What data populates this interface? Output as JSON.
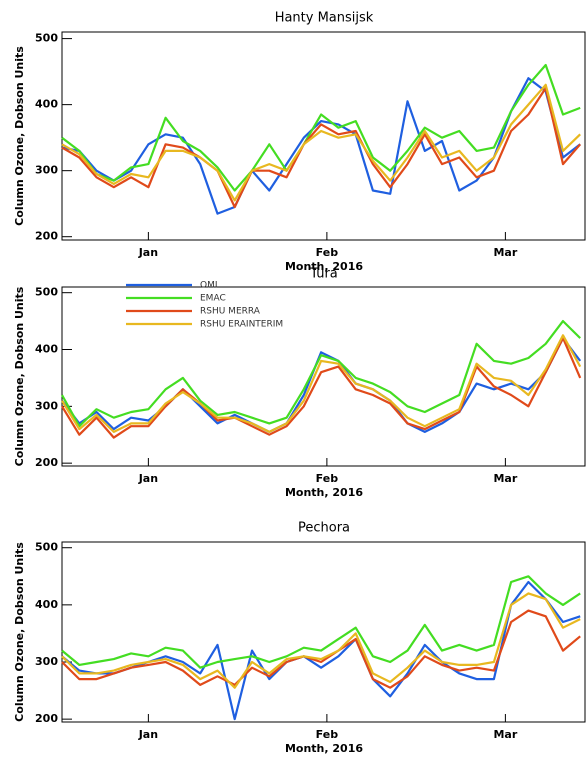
{
  "chart_data": [
    {
      "type": "line",
      "title": "Hanty Mansijsk",
      "x_label": "Month, 2016",
      "y_label": "Column Ozone, Dobson Units",
      "x": [
        0,
        3,
        6,
        9,
        12,
        15,
        18,
        21,
        24,
        27,
        30,
        33,
        36,
        39,
        42,
        45,
        48,
        51,
        54,
        57,
        60,
        63,
        66,
        69,
        72,
        75,
        78,
        81,
        84,
        87,
        90
      ],
      "xlim": [
        0,
        91
      ],
      "xticks": [
        {
          "value": 15,
          "label": "Jan"
        },
        {
          "value": 46,
          "label": "Feb"
        },
        {
          "value": 77,
          "label": "Mar"
        }
      ],
      "ylim": [
        195,
        510
      ],
      "yticks": [
        200,
        300,
        400,
        500
      ],
      "series": [
        {
          "name": "OMI",
          "color": "#1f5fe0",
          "values": [
            335,
            330,
            300,
            285,
            300,
            340,
            355,
            350,
            310,
            235,
            245,
            300,
            270,
            310,
            350,
            375,
            370,
            355,
            270,
            265,
            405,
            330,
            345,
            270,
            285,
            320,
            390,
            440,
            420,
            320,
            340
          ]
        },
        {
          "name": "EMAC",
          "color": "#44dd22",
          "values": [
            350,
            330,
            295,
            285,
            305,
            310,
            380,
            345,
            330,
            305,
            270,
            300,
            340,
            300,
            340,
            385,
            365,
            375,
            320,
            300,
            330,
            365,
            350,
            360,
            330,
            335,
            390,
            430,
            460,
            385,
            395
          ]
        },
        {
          "name": "RSHU MERRA",
          "color": "#e04a1a",
          "values": [
            335,
            320,
            290,
            275,
            290,
            275,
            340,
            335,
            320,
            300,
            245,
            300,
            300,
            290,
            340,
            370,
            355,
            360,
            310,
            275,
            310,
            355,
            310,
            320,
            290,
            300,
            360,
            385,
            425,
            310,
            340
          ]
        },
        {
          "name": "RSHU ERAINTERIM",
          "color": "#e8b820",
          "values": [
            340,
            325,
            295,
            280,
            295,
            290,
            330,
            330,
            320,
            300,
            255,
            300,
            310,
            300,
            340,
            360,
            350,
            355,
            315,
            285,
            320,
            360,
            320,
            330,
            300,
            320,
            370,
            400,
            430,
            330,
            355
          ]
        }
      ]
    },
    {
      "type": "line",
      "title": "Tura",
      "x_label": "Month, 2016",
      "y_label": "Column Ozone, Dobson Units",
      "legend": true,
      "x": [
        0,
        3,
        6,
        9,
        12,
        15,
        18,
        21,
        24,
        27,
        30,
        33,
        36,
        39,
        42,
        45,
        48,
        51,
        54,
        57,
        60,
        63,
        66,
        69,
        72,
        75,
        78,
        81,
        84,
        87,
        90
      ],
      "xlim": [
        0,
        91
      ],
      "xticks": [
        {
          "value": 15,
          "label": "Jan"
        },
        {
          "value": 46,
          "label": "Feb"
        },
        {
          "value": 77,
          "label": "Mar"
        }
      ],
      "ylim": [
        195,
        510
      ],
      "yticks": [
        200,
        300,
        400,
        500
      ],
      "series": [
        {
          "name": "OMI",
          "color": "#1f5fe0",
          "values": [
            310,
            270,
            290,
            260,
            280,
            275,
            300,
            330,
            300,
            270,
            285,
            270,
            255,
            270,
            320,
            395,
            380,
            340,
            330,
            310,
            270,
            255,
            270,
            290,
            340,
            330,
            340,
            330,
            360,
            420,
            380
          ]
        },
        {
          "name": "EMAC",
          "color": "#44dd22",
          "values": [
            320,
            265,
            295,
            280,
            290,
            295,
            330,
            350,
            310,
            285,
            290,
            280,
            270,
            280,
            330,
            390,
            380,
            350,
            340,
            325,
            300,
            290,
            305,
            320,
            410,
            380,
            375,
            385,
            410,
            450,
            420
          ]
        },
        {
          "name": "RSHU MERRA",
          "color": "#e04a1a",
          "values": [
            300,
            250,
            280,
            245,
            265,
            265,
            300,
            330,
            305,
            275,
            280,
            265,
            250,
            265,
            300,
            360,
            370,
            330,
            320,
            305,
            270,
            260,
            275,
            290,
            370,
            335,
            320,
            300,
            360,
            420,
            350
          ]
        },
        {
          "name": "RSHU ERAINTERIM",
          "color": "#e8b820",
          "values": [
            310,
            260,
            285,
            255,
            270,
            270,
            305,
            325,
            305,
            280,
            280,
            270,
            255,
            270,
            310,
            380,
            375,
            340,
            330,
            310,
            280,
            265,
            280,
            295,
            375,
            350,
            345,
            320,
            365,
            425,
            370
          ]
        }
      ]
    },
    {
      "type": "line",
      "title": "Pechora",
      "x_label": "Month, 2016",
      "y_label": "Column Ozone, Dobson Units",
      "x": [
        0,
        3,
        6,
        9,
        12,
        15,
        18,
        21,
        24,
        27,
        30,
        33,
        36,
        39,
        42,
        45,
        48,
        51,
        54,
        57,
        60,
        63,
        66,
        69,
        72,
        75,
        78,
        81,
        84,
        87,
        90
      ],
      "xlim": [
        0,
        91
      ],
      "xticks": [
        {
          "value": 15,
          "label": "Jan"
        },
        {
          "value": 46,
          "label": "Feb"
        },
        {
          "value": 77,
          "label": "Mar"
        }
      ],
      "ylim": [
        195,
        510
      ],
      "yticks": [
        200,
        300,
        400,
        500
      ],
      "series": [
        {
          "name": "OMI",
          "color": "#1f5fe0",
          "values": [
            310,
            285,
            280,
            280,
            290,
            300,
            310,
            300,
            280,
            330,
            200,
            320,
            270,
            300,
            310,
            290,
            310,
            340,
            270,
            240,
            280,
            330,
            300,
            280,
            270,
            270,
            400,
            440,
            410,
            370,
            380
          ]
        },
        {
          "name": "EMAC",
          "color": "#44dd22",
          "values": [
            320,
            295,
            300,
            305,
            315,
            310,
            325,
            320,
            290,
            300,
            305,
            310,
            300,
            310,
            325,
            320,
            340,
            360,
            310,
            300,
            320,
            365,
            320,
            330,
            320,
            330,
            440,
            450,
            420,
            400,
            420
          ]
        },
        {
          "name": "RSHU MERRA",
          "color": "#e04a1a",
          "values": [
            300,
            270,
            270,
            280,
            290,
            295,
            300,
            285,
            260,
            275,
            260,
            290,
            275,
            300,
            310,
            300,
            320,
            340,
            270,
            255,
            275,
            310,
            295,
            285,
            290,
            285,
            370,
            390,
            380,
            320,
            345
          ]
        },
        {
          "name": "RSHU ERAINTERIM",
          "color": "#e8b820",
          "values": [
            310,
            280,
            280,
            285,
            295,
            300,
            305,
            295,
            270,
            285,
            255,
            300,
            280,
            305,
            310,
            305,
            320,
            350,
            280,
            265,
            290,
            320,
            300,
            295,
            295,
            300,
            400,
            420,
            410,
            360,
            375
          ]
        }
      ]
    }
  ]
}
